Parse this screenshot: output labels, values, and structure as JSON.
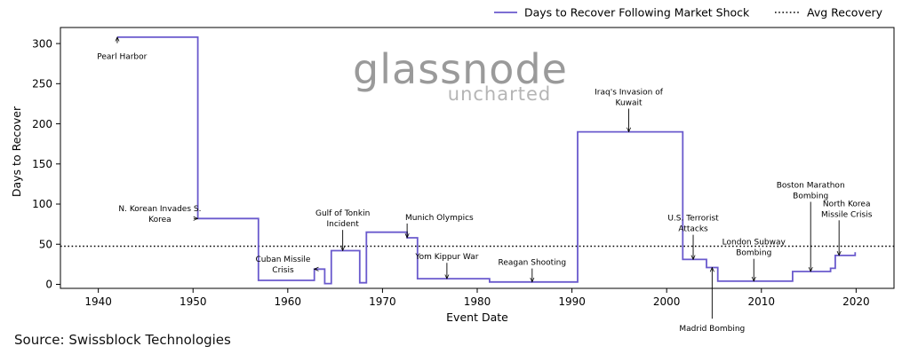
{
  "chart_data": {
    "type": "line",
    "xlabel": "Event Date",
    "ylabel": "Days to Recover",
    "xlim": [
      1936,
      2024
    ],
    "ylim": [
      -5,
      320
    ],
    "x_ticks": [
      1940,
      1950,
      1960,
      1970,
      1980,
      1990,
      2000,
      2010,
      2020
    ],
    "y_ticks": [
      0,
      50,
      100,
      150,
      200,
      250,
      300
    ],
    "grid": false,
    "legend_position": "top-right",
    "series": [
      {
        "name": "Days to Recover Following Market Shock",
        "color": "#6a5acd",
        "style": "step",
        "points": [
          [
            1942.0,
            308
          ],
          [
            1950.5,
            308
          ],
          [
            1950.5,
            82
          ],
          [
            1956.9,
            82
          ],
          [
            1956.9,
            5
          ],
          [
            1962.8,
            5
          ],
          [
            1962.8,
            19
          ],
          [
            1963.9,
            19
          ],
          [
            1963.9,
            1
          ],
          [
            1964.6,
            1
          ],
          [
            1964.6,
            42
          ],
          [
            1967.6,
            42
          ],
          [
            1967.6,
            2
          ],
          [
            1968.3,
            2
          ],
          [
            1968.3,
            65
          ],
          [
            1972.6,
            65
          ],
          [
            1972.6,
            58
          ],
          [
            1973.7,
            58
          ],
          [
            1973.7,
            7
          ],
          [
            1981.3,
            7
          ],
          [
            1981.3,
            3
          ],
          [
            1990.6,
            3
          ],
          [
            1990.6,
            190
          ],
          [
            2001.7,
            190
          ],
          [
            2001.7,
            31
          ],
          [
            2004.2,
            31
          ],
          [
            2004.2,
            21
          ],
          [
            2005.4,
            21
          ],
          [
            2005.4,
            4
          ],
          [
            2013.3,
            4
          ],
          [
            2013.3,
            16
          ],
          [
            2017.3,
            16
          ],
          [
            2017.3,
            20
          ],
          [
            2017.8,
            20
          ],
          [
            2017.8,
            36
          ],
          [
            2019.9,
            36
          ],
          [
            2019.9,
            40
          ]
        ]
      },
      {
        "name": "Avg Recovery",
        "color": "#000000",
        "style": "dotted",
        "y": 47.5
      }
    ],
    "annotations": [
      {
        "lines": [
          "Pearl Harbor"
        ],
        "x": 1942.0,
        "y": 308,
        "tx": 1942.5,
        "ty": 285,
        "arrow": "down"
      },
      {
        "lines": [
          "N. Korean Invades S.",
          "Korea"
        ],
        "x": 1950.5,
        "y": 82,
        "tx": 1946.5,
        "ty": 87,
        "arrow": "left"
      },
      {
        "lines": [
          "Cuban Missile",
          "Crisis"
        ],
        "x": 1962.8,
        "y": 19,
        "tx": 1959.5,
        "ty": 24,
        "arrow": "left"
      },
      {
        "lines": [
          "Gulf of Tonkin",
          "Incident"
        ],
        "x": 1965.8,
        "y": 42,
        "tx": 1965.8,
        "ty": 70,
        "arrow": "up"
      },
      {
        "lines": [
          "Munich Olympics"
        ],
        "x": 1972.6,
        "y": 58,
        "tx": 1976.0,
        "ty": 78,
        "arrow": "up"
      },
      {
        "lines": [
          "Yom Kippur War"
        ],
        "x": 1976.8,
        "y": 7,
        "tx": 1976.8,
        "ty": 29,
        "arrow": "up"
      },
      {
        "lines": [
          "Reagan Shooting"
        ],
        "x": 1985.8,
        "y": 3,
        "tx": 1985.8,
        "ty": 22,
        "arrow": "up"
      },
      {
        "lines": [
          "Iraq's Invasion of",
          "Kuwait"
        ],
        "x": 1996.0,
        "y": 190,
        "tx": 1996.0,
        "ty": 221,
        "arrow": "up"
      },
      {
        "lines": [
          "U.S. Terrorist",
          "Attacks"
        ],
        "x": 2002.8,
        "y": 31,
        "tx": 2002.8,
        "ty": 64,
        "arrow": "up"
      },
      {
        "lines": [
          "Madrid Bombing"
        ],
        "x": 2004.8,
        "y": 21,
        "tx": 2004.8,
        "ty": -45,
        "arrow": "down-long"
      },
      {
        "lines": [
          "London Subway",
          "Bombing"
        ],
        "x": 2009.2,
        "y": 4,
        "tx": 2009.2,
        "ty": 34,
        "arrow": "up"
      },
      {
        "lines": [
          "Boston Marathon",
          "Bombing"
        ],
        "x": 2015.2,
        "y": 16,
        "tx": 2015.2,
        "ty": 105,
        "arrow": "up-long"
      },
      {
        "lines": [
          "North Korea",
          "Missile Crisis"
        ],
        "x": 2018.2,
        "y": 36,
        "tx": 2019.0,
        "ty": 82,
        "arrow": "up"
      }
    ]
  },
  "watermark": {
    "name": "glassnode",
    "tagline": "uncharted"
  },
  "source": "Source: Swissblock Technologies"
}
